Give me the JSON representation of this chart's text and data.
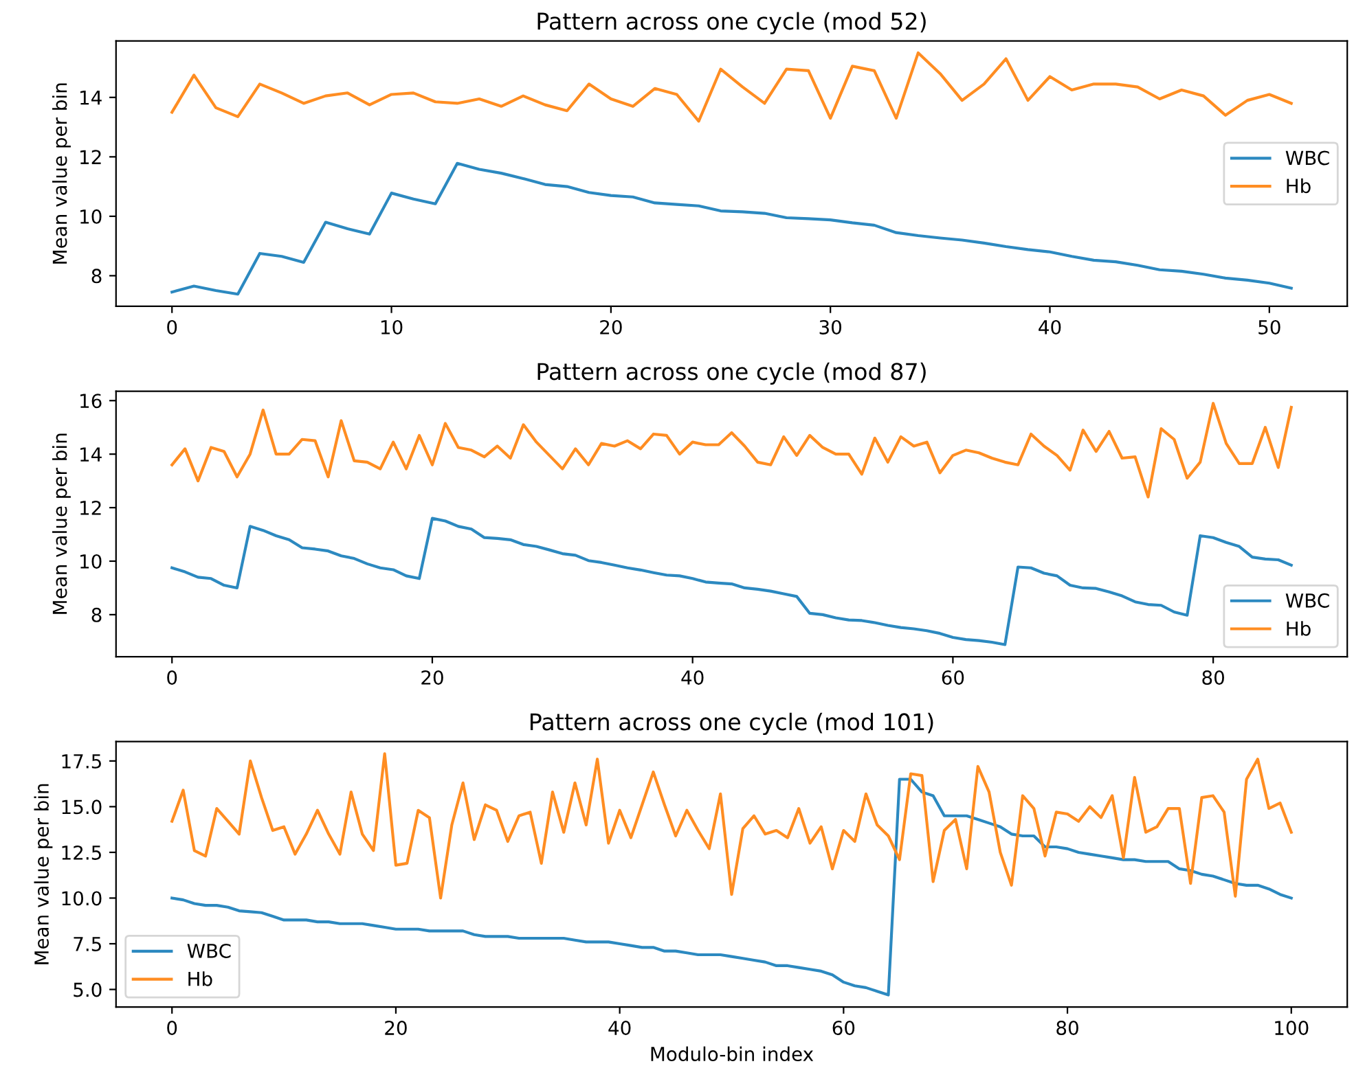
{
  "chart_data": [
    {
      "type": "line",
      "title": "Pattern across one cycle (mod 52)",
      "ylabel": "Mean value per bin",
      "legend": "center right",
      "grid": false,
      "x": [
        0,
        1,
        2,
        3,
        4,
        5,
        6,
        7,
        8,
        9,
        10,
        11,
        12,
        13,
        14,
        15,
        16,
        17,
        18,
        19,
        20,
        21,
        22,
        23,
        24,
        25,
        26,
        27,
        28,
        29,
        30,
        31,
        32,
        33,
        34,
        35,
        36,
        37,
        38,
        39,
        40,
        41,
        42,
        43,
        44,
        45,
        46,
        47,
        48,
        49,
        50,
        51
      ],
      "xlim": [
        -2.55,
        53.55
      ],
      "xticks": [
        0,
        10,
        20,
        30,
        40,
        50
      ],
      "ylim": [
        6.97,
        15.9
      ],
      "yticks": [
        8,
        10,
        12,
        14
      ],
      "series": [
        {
          "name": "WBC",
          "color": "#2c89c0",
          "values": [
            7.45,
            7.65,
            7.5,
            7.38,
            8.75,
            8.65,
            8.45,
            9.8,
            9.58,
            9.4,
            10.78,
            10.58,
            10.42,
            11.78,
            11.58,
            11.45,
            11.27,
            11.07,
            11.0,
            10.8,
            10.7,
            10.65,
            10.45,
            10.4,
            10.35,
            10.18,
            10.15,
            10.1,
            9.95,
            9.92,
            9.88,
            9.78,
            9.7,
            9.45,
            9.35,
            9.27,
            9.2,
            9.1,
            8.98,
            8.88,
            8.8,
            8.65,
            8.52,
            8.47,
            8.35,
            8.2,
            8.15,
            8.05,
            7.92,
            7.85,
            7.75,
            7.58
          ]
        },
        {
          "name": "Hb",
          "color": "#ff8d22",
          "values": [
            13.5,
            14.75,
            13.65,
            13.35,
            14.45,
            14.15,
            13.8,
            14.05,
            14.15,
            13.75,
            14.1,
            14.15,
            13.85,
            13.8,
            13.95,
            13.7,
            14.05,
            13.75,
            13.55,
            14.45,
            13.95,
            13.7,
            14.3,
            14.1,
            13.2,
            14.95,
            14.35,
            13.8,
            14.95,
            14.9,
            13.3,
            15.05,
            14.9,
            13.3,
            15.5,
            14.8,
            13.9,
            14.45,
            15.3,
            13.9,
            14.7,
            14.25,
            14.45,
            14.45,
            14.35,
            13.95,
            14.25,
            14.05,
            13.4,
            13.9,
            14.1,
            13.8
          ]
        }
      ]
    },
    {
      "type": "line",
      "title": "Pattern across one cycle (mod 87)",
      "ylabel": "Mean value per bin",
      "legend": "lower right",
      "grid": false,
      "x": [
        0,
        1,
        2,
        3,
        4,
        5,
        6,
        7,
        8,
        9,
        10,
        11,
        12,
        13,
        14,
        15,
        16,
        17,
        18,
        19,
        20,
        21,
        22,
        23,
        24,
        25,
        26,
        27,
        28,
        29,
        30,
        31,
        32,
        33,
        34,
        35,
        36,
        37,
        38,
        39,
        40,
        41,
        42,
        43,
        44,
        45,
        46,
        47,
        48,
        49,
        50,
        51,
        52,
        53,
        54,
        55,
        56,
        57,
        58,
        59,
        60,
        61,
        62,
        63,
        64,
        65,
        66,
        67,
        68,
        69,
        70,
        71,
        72,
        73,
        74,
        75,
        76,
        77,
        78,
        79,
        80,
        81,
        82,
        83,
        84,
        85,
        86
      ],
      "xlim": [
        -4.3,
        90.3
      ],
      "xticks": [
        0,
        20,
        40,
        60,
        80
      ],
      "ylim": [
        6.43,
        16.35
      ],
      "yticks": [
        8,
        10,
        12,
        14,
        16
      ],
      "series": [
        {
          "name": "WBC",
          "color": "#2c89c0",
          "values": [
            9.75,
            9.6,
            9.4,
            9.35,
            9.1,
            9.0,
            11.3,
            11.15,
            10.95,
            10.8,
            10.5,
            10.45,
            10.38,
            10.2,
            10.1,
            9.9,
            9.75,
            9.68,
            9.45,
            9.35,
            11.6,
            11.5,
            11.3,
            11.2,
            10.88,
            10.85,
            10.8,
            10.62,
            10.55,
            10.42,
            10.28,
            10.22,
            10.02,
            9.95,
            9.85,
            9.75,
            9.67,
            9.57,
            9.48,
            9.45,
            9.35,
            9.22,
            9.18,
            9.15,
            9.0,
            8.95,
            8.88,
            8.78,
            8.68,
            8.05,
            8.0,
            7.88,
            7.8,
            7.78,
            7.7,
            7.6,
            7.52,
            7.47,
            7.4,
            7.3,
            7.15,
            7.07,
            7.03,
            6.97,
            6.88,
            9.78,
            9.75,
            9.55,
            9.45,
            9.1,
            9.0,
            8.98,
            8.85,
            8.7,
            8.48,
            8.38,
            8.35,
            8.1,
            7.98,
            10.95,
            10.88,
            10.7,
            10.55,
            10.15,
            10.08,
            10.05,
            9.85
          ]
        },
        {
          "name": "Hb",
          "color": "#ff8d22",
          "values": [
            13.6,
            14.2,
            13.0,
            14.25,
            14.1,
            13.15,
            14.0,
            15.65,
            14.0,
            14.0,
            14.55,
            14.5,
            13.15,
            15.25,
            13.75,
            13.7,
            13.45,
            14.45,
            13.45,
            14.7,
            13.6,
            15.15,
            14.25,
            14.15,
            13.9,
            14.3,
            13.85,
            15.1,
            14.45,
            13.95,
            13.45,
            14.2,
            13.6,
            14.4,
            14.3,
            14.5,
            14.2,
            14.75,
            14.7,
            14.0,
            14.45,
            14.35,
            14.35,
            14.8,
            14.3,
            13.7,
            13.6,
            14.65,
            13.95,
            14.7,
            14.25,
            14.0,
            14.0,
            13.25,
            14.6,
            13.7,
            14.65,
            14.3,
            14.45,
            13.3,
            13.95,
            14.15,
            14.05,
            13.85,
            13.7,
            13.6,
            14.75,
            14.3,
            13.95,
            13.4,
            14.9,
            14.1,
            14.85,
            13.85,
            13.9,
            12.4,
            14.95,
            14.55,
            13.1,
            13.7,
            15.9,
            14.4,
            13.65,
            13.65,
            15.0,
            13.5,
            15.75
          ]
        }
      ]
    },
    {
      "type": "line",
      "title": "Pattern across one cycle (mod 101)",
      "xlabel": "Modulo-bin index",
      "ylabel": "Mean value per bin",
      "legend": "lower left",
      "grid": false,
      "x": [
        0,
        1,
        2,
        3,
        4,
        5,
        6,
        7,
        8,
        9,
        10,
        11,
        12,
        13,
        14,
        15,
        16,
        17,
        18,
        19,
        20,
        21,
        22,
        23,
        24,
        25,
        26,
        27,
        28,
        29,
        30,
        31,
        32,
        33,
        34,
        35,
        36,
        37,
        38,
        39,
        40,
        41,
        42,
        43,
        44,
        45,
        46,
        47,
        48,
        49,
        50,
        51,
        52,
        53,
        54,
        55,
        56,
        57,
        58,
        59,
        60,
        61,
        62,
        63,
        64,
        65,
        66,
        67,
        68,
        69,
        70,
        71,
        72,
        73,
        74,
        75,
        76,
        77,
        78,
        79,
        80,
        81,
        82,
        83,
        84,
        85,
        86,
        87,
        88,
        89,
        90,
        91,
        92,
        93,
        94,
        95,
        96,
        97,
        98,
        99,
        100
      ],
      "xlim": [
        -5,
        105
      ],
      "xticks": [
        0,
        20,
        40,
        60,
        80,
        100
      ],
      "ylim": [
        4.04,
        18.56
      ],
      "yticks": [
        {
          "value": 5,
          "label": "5.0"
        },
        {
          "value": 7.5,
          "label": "7.5"
        },
        {
          "value": 10,
          "label": "10.0"
        },
        {
          "value": 12.5,
          "label": "12.5"
        },
        {
          "value": 15,
          "label": "15.0"
        },
        {
          "value": 17.5,
          "label": "17.5"
        }
      ],
      "series": [
        {
          "name": "WBC",
          "color": "#2c89c0",
          "values": [
            10.0,
            9.9,
            9.7,
            9.6,
            9.6,
            9.5,
            9.3,
            9.25,
            9.2,
            9.0,
            8.8,
            8.8,
            8.8,
            8.7,
            8.7,
            8.6,
            8.6,
            8.6,
            8.5,
            8.4,
            8.3,
            8.3,
            8.3,
            8.2,
            8.2,
            8.2,
            8.2,
            8.0,
            7.9,
            7.9,
            7.9,
            7.8,
            7.8,
            7.8,
            7.8,
            7.8,
            7.7,
            7.6,
            7.6,
            7.6,
            7.5,
            7.4,
            7.3,
            7.3,
            7.1,
            7.1,
            7.0,
            6.9,
            6.9,
            6.9,
            6.8,
            6.7,
            6.6,
            6.5,
            6.3,
            6.3,
            6.2,
            6.1,
            6.0,
            5.8,
            5.4,
            5.2,
            5.1,
            4.9,
            4.7,
            16.5,
            16.5,
            15.8,
            15.6,
            14.5,
            14.5,
            14.5,
            14.3,
            14.1,
            13.9,
            13.5,
            13.4,
            13.4,
            12.8,
            12.8,
            12.7,
            12.5,
            12.4,
            12.3,
            12.2,
            12.1,
            12.1,
            12.0,
            12.0,
            12.0,
            11.6,
            11.5,
            11.3,
            11.2,
            11.0,
            10.8,
            10.7,
            10.7,
            10.5,
            10.2,
            10.0
          ]
        },
        {
          "name": "Hb",
          "color": "#ff8d22",
          "values": [
            14.2,
            15.9,
            12.6,
            12.3,
            14.9,
            14.2,
            13.5,
            17.5,
            15.5,
            13.7,
            13.9,
            12.4,
            13.5,
            14.8,
            13.5,
            12.4,
            15.8,
            13.5,
            12.6,
            17.9,
            11.8,
            11.9,
            14.8,
            14.4,
            10.0,
            14.0,
            16.3,
            13.2,
            15.1,
            14.8,
            13.1,
            14.5,
            14.7,
            11.9,
            15.8,
            13.6,
            16.3,
            14.0,
            17.6,
            13.0,
            14.8,
            13.3,
            15.1,
            16.9,
            15.1,
            13.4,
            14.8,
            13.7,
            12.7,
            15.7,
            10.2,
            13.8,
            14.5,
            13.5,
            13.7,
            13.3,
            14.9,
            13.0,
            13.9,
            11.6,
            13.7,
            13.1,
            15.7,
            14.0,
            13.4,
            12.1,
            16.8,
            16.7,
            10.9,
            13.7,
            14.3,
            11.6,
            17.2,
            15.8,
            12.5,
            10.7,
            15.6,
            14.9,
            12.3,
            14.7,
            14.6,
            14.2,
            15.0,
            14.4,
            15.6,
            12.2,
            16.6,
            13.6,
            13.9,
            14.9,
            14.9,
            10.8,
            15.5,
            15.6,
            14.7,
            10.1,
            16.5,
            17.6,
            14.9,
            15.2,
            13.6
          ]
        }
      ]
    }
  ]
}
